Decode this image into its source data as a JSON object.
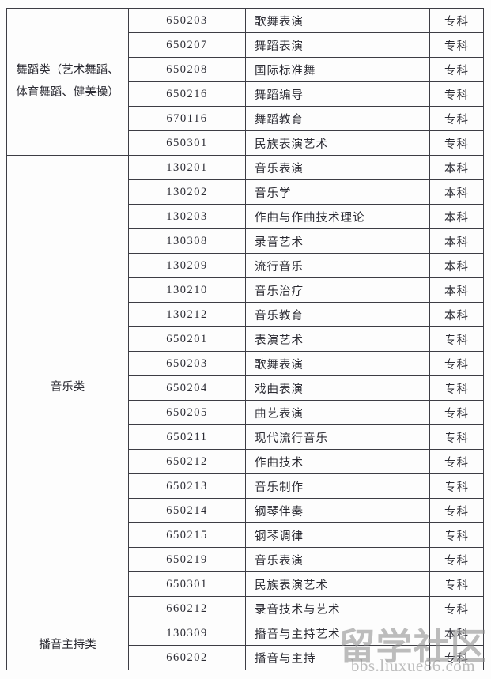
{
  "table": {
    "sections": [
      {
        "category": "舞蹈类（艺术舞蹈、体育舞蹈、健美操）",
        "rows": [
          {
            "code": "650203",
            "major": "歌舞表演",
            "level": "专科"
          },
          {
            "code": "650207",
            "major": "舞蹈表演",
            "level": "专科"
          },
          {
            "code": "650208",
            "major": "国际标准舞",
            "level": "专科"
          },
          {
            "code": "650216",
            "major": "舞蹈编导",
            "level": "专科"
          },
          {
            "code": "670116",
            "major": "舞蹈教育",
            "level": "专科"
          },
          {
            "code": "650301",
            "major": "民族表演艺术",
            "level": "专科"
          }
        ]
      },
      {
        "category": "音乐类",
        "rows": [
          {
            "code": "130201",
            "major": "音乐表演",
            "level": "本科"
          },
          {
            "code": "130202",
            "major": "音乐学",
            "level": "本科"
          },
          {
            "code": "130203",
            "major": "作曲与作曲技术理论",
            "level": "本科"
          },
          {
            "code": "130308",
            "major": "录音艺术",
            "level": "本科"
          },
          {
            "code": "130209",
            "major": "流行音乐",
            "level": "本科"
          },
          {
            "code": "130210",
            "major": "音乐治疗",
            "level": "本科"
          },
          {
            "code": "130212",
            "major": "音乐教育",
            "level": "本科"
          },
          {
            "code": "650201",
            "major": "表演艺术",
            "level": "专科"
          },
          {
            "code": "650203",
            "major": "歌舞表演",
            "level": "专科"
          },
          {
            "code": "650204",
            "major": "戏曲表演",
            "level": "专科"
          },
          {
            "code": "650205",
            "major": "曲艺表演",
            "level": "专科"
          },
          {
            "code": "650211",
            "major": "现代流行音乐",
            "level": "专科"
          },
          {
            "code": "650212",
            "major": "作曲技术",
            "level": "专科"
          },
          {
            "code": "650213",
            "major": "音乐制作",
            "level": "专科"
          },
          {
            "code": "650214",
            "major": "钢琴伴奏",
            "level": "专科"
          },
          {
            "code": "650215",
            "major": "钢琴调律",
            "level": "专科"
          },
          {
            "code": "650219",
            "major": "音乐表演",
            "level": "专科"
          },
          {
            "code": "650301",
            "major": "民族表演艺术",
            "level": "专科"
          },
          {
            "code": "660212",
            "major": "录音技术与艺术",
            "level": "专科"
          }
        ]
      },
      {
        "category": "播音主持类",
        "rows": [
          {
            "code": "130309",
            "major": "播音与主持艺术",
            "level": "本科"
          },
          {
            "code": "660202",
            "major": "播音与主持",
            "level": "专科"
          }
        ]
      }
    ]
  },
  "watermark": {
    "title": "留学社区",
    "url": "bbs.liuxue86.com"
  },
  "colors": {
    "border": "#3d3d44",
    "text": "#2b2b33",
    "watermark": "#949494",
    "background": "#fdfdfd"
  }
}
